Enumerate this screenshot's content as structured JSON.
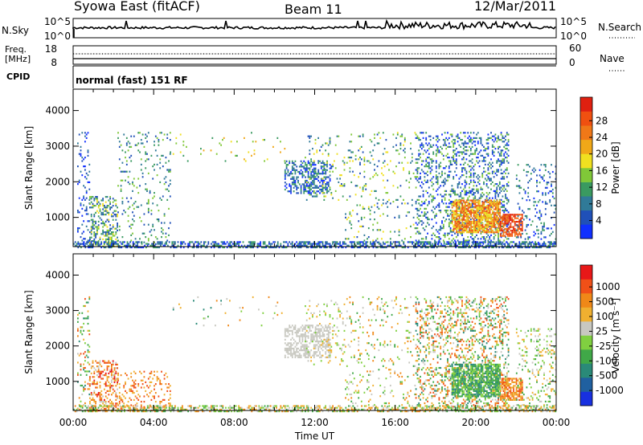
{
  "header": {
    "station": "Syowa East (fitACF)",
    "beam": "Beam 11",
    "date": "12/Mar/2011"
  },
  "top_panels": {
    "nsky_label": "N.Sky",
    "nsky_ticks": [
      "10^5",
      "10^0"
    ],
    "nsearch_label": "N.Search",
    "nsearch_ticks": [
      "10^5",
      "10^0"
    ],
    "freq_label": "Freq.",
    "freq_unit": "[MHz]",
    "freq_ticks": [
      "18",
      "8"
    ],
    "nave_label": "Nave",
    "nave_ticks": [
      "60",
      "0"
    ],
    "cpid_label": "CPID",
    "cpid_text": "normal (fast) 151 RF"
  },
  "chart_data": [
    {
      "type": "heatmap",
      "name": "power",
      "xlabel": "Time UT",
      "ylabel": "Slant Range [km]",
      "xlim": [
        0,
        24
      ],
      "ylim": [
        180,
        4600
      ],
      "x_ticks": [
        "00:00",
        "04:00",
        "08:00",
        "12:00",
        "16:00",
        "20:00",
        "00:00"
      ],
      "y_ticks": [
        1000,
        2000,
        3000,
        4000
      ],
      "colorbar": {
        "label": "Power [dB]",
        "ticks": [
          "4",
          "8",
          "12",
          "16",
          "20",
          "24",
          "28"
        ],
        "colors": [
          "#1030ff",
          "#2050b8",
          "#307a98",
          "#3a9a60",
          "#80c838",
          "#f0e020",
          "#f0a818",
          "#f07818",
          "#f05010",
          "#e02010"
        ]
      },
      "regions": [
        {
          "t": [
            0.2,
            0.8
          ],
          "r": [
            180,
            3400
          ],
          "density": 0.18,
          "levels": [
            0,
            2
          ]
        },
        {
          "t": [
            0.8,
            2.2
          ],
          "r": [
            180,
            1600
          ],
          "density": 0.4,
          "levels": [
            1,
            5
          ]
        },
        {
          "t": [
            2.2,
            4.8
          ],
          "r": [
            180,
            3400
          ],
          "density": 0.1,
          "levels": [
            1,
            4
          ]
        },
        {
          "t": [
            4.8,
            10.5
          ],
          "r": [
            2600,
            3400
          ],
          "density": 0.03,
          "levels": [
            3,
            6
          ]
        },
        {
          "t": [
            10.5,
            12.8
          ],
          "r": [
            1700,
            2600
          ],
          "density": 0.45,
          "levels": [
            0,
            3
          ]
        },
        {
          "t": [
            11.5,
            13.5
          ],
          "r": [
            1500,
            3300
          ],
          "density": 0.12,
          "levels": [
            1,
            5
          ]
        },
        {
          "t": [
            13.5,
            17.0
          ],
          "r": [
            300,
            3400
          ],
          "density": 0.08,
          "levels": [
            1,
            5
          ]
        },
        {
          "t": [
            17.0,
            18.5
          ],
          "r": [
            180,
            3400
          ],
          "density": 0.25,
          "levels": [
            0,
            4
          ]
        },
        {
          "t": [
            18.5,
            21.6
          ],
          "r": [
            180,
            3400
          ],
          "density": 0.3,
          "levels": [
            0,
            4
          ]
        },
        {
          "t": [
            18.8,
            21.2
          ],
          "r": [
            600,
            1500
          ],
          "density": 0.75,
          "levels": [
            5,
            8
          ]
        },
        {
          "t": [
            21.2,
            22.3
          ],
          "r": [
            500,
            1100
          ],
          "density": 0.7,
          "levels": [
            7,
            9
          ]
        },
        {
          "t": [
            22.0,
            24.0
          ],
          "r": [
            180,
            2500
          ],
          "density": 0.15,
          "levels": [
            0,
            3
          ]
        },
        {
          "t": [
            0.0,
            24.0
          ],
          "r": [
            180,
            330
          ],
          "density": 0.55,
          "levels": [
            0,
            3
          ]
        }
      ]
    },
    {
      "type": "heatmap",
      "name": "velocity",
      "xlabel": "Time UT",
      "ylabel": "Slant Range [km]",
      "xlim": [
        0,
        24
      ],
      "ylim": [
        180,
        4600
      ],
      "x_ticks": [
        "00:00",
        "04:00",
        "08:00",
        "12:00",
        "16:00",
        "20:00",
        "00:00"
      ],
      "y_ticks": [
        1000,
        2000,
        3000,
        4000
      ],
      "colorbar": {
        "label": "Velocity [m s⁻¹]",
        "ticks": [
          "1000",
          "500",
          "100",
          "25",
          "-25",
          "-100",
          "-500",
          "-1000"
        ],
        "colors": [
          "#1830e0",
          "#2060a0",
          "#2a8a78",
          "#40a848",
          "#80d040",
          "#c8c8c0",
          "#f0b030",
          "#f08818",
          "#f05018",
          "#e81818"
        ]
      },
      "regions": [
        {
          "t": [
            0.2,
            0.8
          ],
          "r": [
            180,
            3400
          ],
          "density": 0.15,
          "levels": [
            2,
            8
          ]
        },
        {
          "t": [
            0.8,
            2.2
          ],
          "r": [
            180,
            1600
          ],
          "density": 0.4,
          "levels": [
            5,
            9
          ]
        },
        {
          "t": [
            2.2,
            4.8
          ],
          "r": [
            180,
            1300
          ],
          "density": 0.18,
          "levels": [
            6,
            8
          ]
        },
        {
          "t": [
            4.8,
            10.5
          ],
          "r": [
            2600,
            3400
          ],
          "density": 0.03,
          "levels": [
            2,
            7
          ]
        },
        {
          "t": [
            10.5,
            12.8
          ],
          "r": [
            1700,
            2600
          ],
          "density": 0.5,
          "levels": [
            5,
            5
          ]
        },
        {
          "t": [
            11.5,
            13.5
          ],
          "r": [
            1500,
            3300
          ],
          "density": 0.12,
          "levels": [
            4,
            6
          ]
        },
        {
          "t": [
            13.5,
            17.0
          ],
          "r": [
            300,
            3400
          ],
          "density": 0.08,
          "levels": [
            3,
            7
          ]
        },
        {
          "t": [
            17.0,
            18.5
          ],
          "r": [
            180,
            3400
          ],
          "density": 0.25,
          "levels": [
            2,
            8
          ]
        },
        {
          "t": [
            18.5,
            21.6
          ],
          "r": [
            180,
            3400
          ],
          "density": 0.3,
          "levels": [
            2,
            8
          ]
        },
        {
          "t": [
            18.8,
            21.2
          ],
          "r": [
            600,
            1500
          ],
          "density": 0.75,
          "levels": [
            2,
            4
          ]
        },
        {
          "t": [
            21.2,
            22.3
          ],
          "r": [
            500,
            1100
          ],
          "density": 0.7,
          "levels": [
            6,
            8
          ]
        },
        {
          "t": [
            22.0,
            24.0
          ],
          "r": [
            180,
            2500
          ],
          "density": 0.15,
          "levels": [
            3,
            6
          ]
        },
        {
          "t": [
            0.0,
            24.0
          ],
          "r": [
            180,
            330
          ],
          "density": 0.5,
          "levels": [
            3,
            7
          ]
        }
      ]
    }
  ]
}
